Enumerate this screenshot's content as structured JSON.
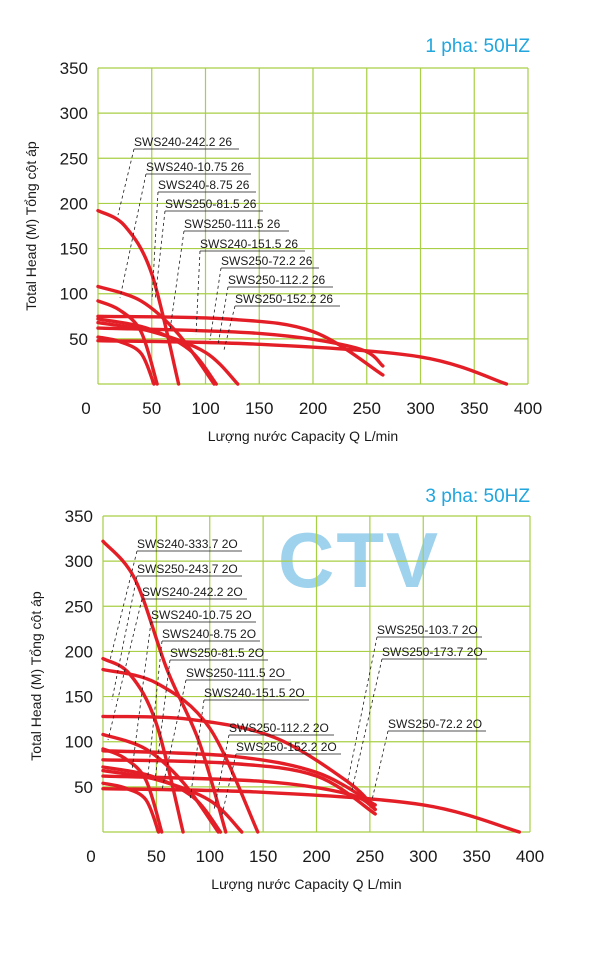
{
  "chart_data": [
    {
      "type": "line",
      "title": "1 pha: 50HZ",
      "xlabel": "Lượng nước Capacity Q L/min",
      "ylabel": "Total Head (M) Tổng cột áp",
      "xlim": [
        0,
        400
      ],
      "ylim": [
        0,
        350
      ],
      "xticks": [
        "0",
        "50",
        "100",
        "150",
        "200",
        "250",
        "300",
        "350",
        "400"
      ],
      "yticks": [
        "50",
        "100",
        "150",
        "200",
        "250",
        "300",
        "350"
      ],
      "grid": true,
      "series": [
        {
          "name": "SWS240-242.2 26",
          "points": [
            [
              0,
              192
            ],
            [
              25,
              175
            ],
            [
              50,
              122
            ],
            [
              75,
              0
            ]
          ]
        },
        {
          "name": "SWS240-10.75 26",
          "points": [
            [
              0,
              92
            ],
            [
              20,
              82
            ],
            [
              40,
              58
            ],
            [
              55,
              0
            ]
          ]
        },
        {
          "name": "SWS240-8.75 26",
          "points": [
            [
              0,
              52
            ],
            [
              20,
              47
            ],
            [
              40,
              34
            ],
            [
              52,
              0
            ]
          ]
        },
        {
          "name": "SWS250-81.5 26",
          "points": [
            [
              0,
              108
            ],
            [
              40,
              92
            ],
            [
              75,
              55
            ],
            [
              108,
              0
            ]
          ]
        },
        {
          "name": "SWS250-111.5 26",
          "points": [
            [
              0,
              68
            ],
            [
              50,
              58
            ],
            [
              100,
              35
            ],
            [
              130,
              0
            ]
          ]
        },
        {
          "name": "SWS240-151.5 26",
          "points": [
            [
              0,
              72
            ],
            [
              45,
              62
            ],
            [
              85,
              38
            ],
            [
              110,
              0
            ]
          ]
        },
        {
          "name": "SWS250-72.2 26",
          "points": [
            [
              0,
              48
            ],
            [
              150,
              44
            ],
            [
              300,
              30
            ],
            [
              380,
              0
            ]
          ]
        },
        {
          "name": "SWS250-112.2 26",
          "points": [
            [
              0,
              75
            ],
            [
              120,
              72
            ],
            [
              200,
              58
            ],
            [
              265,
              10
            ]
          ]
        },
        {
          "name": "SWS250-152.2 26",
          "points": [
            [
              0,
              62
            ],
            [
              150,
              56
            ],
            [
              240,
              40
            ],
            [
              265,
              20
            ]
          ]
        }
      ]
    },
    {
      "type": "line",
      "title": "3 pha: 50HZ",
      "xlabel": "Lượng nước Capacity Q L/min",
      "ylabel": "Total Head (M) Tổng cột áp",
      "xlim": [
        0,
        400
      ],
      "ylim": [
        0,
        350
      ],
      "xticks": [
        "0",
        "50",
        "100",
        "150",
        "200",
        "250",
        "300",
        "350",
        "400"
      ],
      "yticks": [
        "50",
        "100",
        "150",
        "200",
        "250",
        "300",
        "350"
      ],
      "grid": true,
      "watermark": "CTV",
      "series": [
        {
          "name": "SWS240-333.7 2O",
          "points": [
            [
              0,
              322
            ],
            [
              30,
              280
            ],
            [
              60,
              180
            ],
            [
              90,
              100
            ],
            [
              115,
              0
            ]
          ]
        },
        {
          "name": "SWS250-243.7 2O",
          "points": [
            [
              0,
              180
            ],
            [
              50,
              165
            ],
            [
              100,
              115
            ],
            [
              145,
              0
            ]
          ]
        },
        {
          "name": "SWS240-242.2 2O",
          "points": [
            [
              0,
              192
            ],
            [
              25,
              175
            ],
            [
              50,
              120
            ],
            [
              75,
              0
            ]
          ]
        },
        {
          "name": "SWS240-10.75 2O",
          "points": [
            [
              0,
              92
            ],
            [
              20,
              82
            ],
            [
              40,
              58
            ],
            [
              55,
              0
            ]
          ]
        },
        {
          "name": "SWS240-8.75 2O",
          "points": [
            [
              0,
              54
            ],
            [
              20,
              49
            ],
            [
              40,
              36
            ],
            [
              52,
              0
            ]
          ]
        },
        {
          "name": "SWS250-81.5 2O",
          "points": [
            [
              0,
              108
            ],
            [
              40,
              92
            ],
            [
              75,
              55
            ],
            [
              108,
              0
            ]
          ]
        },
        {
          "name": "SWS250-111.5 2O",
          "points": [
            [
              0,
              68
            ],
            [
              50,
              58
            ],
            [
              100,
              35
            ],
            [
              130,
              0
            ]
          ]
        },
        {
          "name": "SWS240-151.5 2O",
          "points": [
            [
              0,
              72
            ],
            [
              45,
              62
            ],
            [
              85,
              38
            ],
            [
              110,
              0
            ]
          ]
        },
        {
          "name": "SWS250-112.2 2O",
          "points": [
            [
              0,
              80
            ],
            [
              120,
              76
            ],
            [
              200,
              62
            ],
            [
              255,
              20
            ]
          ]
        },
        {
          "name": "SWS250-152.2 2O",
          "points": [
            [
              0,
              62
            ],
            [
              150,
              56
            ],
            [
              230,
              42
            ],
            [
              255,
              25
            ]
          ]
        },
        {
          "name": "SWS250-103.7 2O",
          "points": [
            [
              0,
              128
            ],
            [
              80,
              125
            ],
            [
              160,
              105
            ],
            [
              230,
              55
            ],
            [
              255,
              25
            ]
          ]
        },
        {
          "name": "SWS250-173.7 2O",
          "points": [
            [
              0,
              90
            ],
            [
              120,
              84
            ],
            [
              200,
              66
            ],
            [
              255,
              30
            ]
          ]
        },
        {
          "name": "SWS250-72.2 2O",
          "points": [
            [
              0,
              48
            ],
            [
              150,
              44
            ],
            [
              300,
              30
            ],
            [
              390,
              0
            ]
          ]
        }
      ]
    }
  ]
}
